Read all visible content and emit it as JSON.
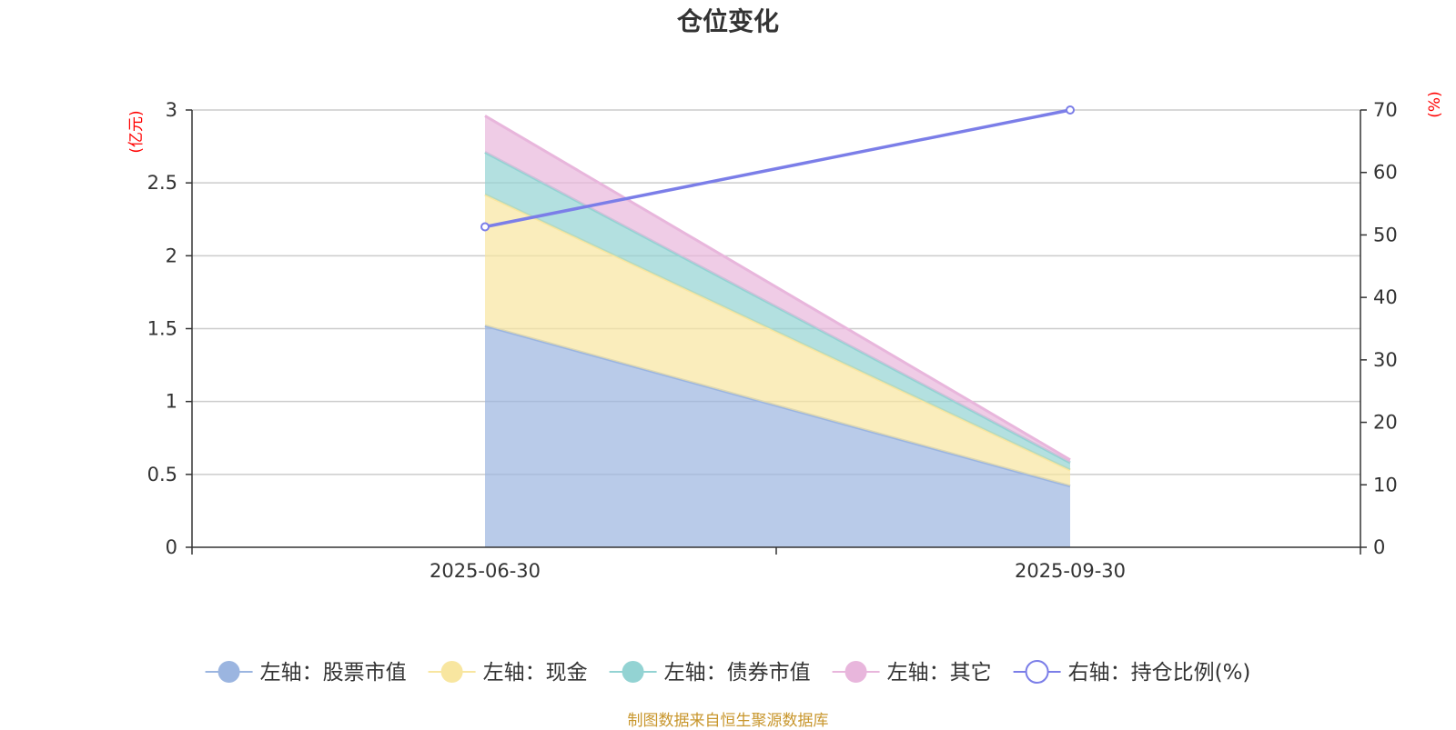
{
  "chart_data": {
    "type": "area",
    "title": "仓位变化",
    "categories": [
      "2025-06-30",
      "2025-09-30"
    ],
    "left_axis": {
      "unit": "(亿元)",
      "ylim": [
        0,
        3
      ],
      "ticks": [
        "0",
        "0.5",
        "1",
        "1.5",
        "2",
        "2.5",
        "3"
      ]
    },
    "right_axis": {
      "unit": "(%)",
      "ylim": [
        0,
        70
      ],
      "ticks": [
        "0",
        "10",
        "20",
        "30",
        "40",
        "50",
        "60",
        "70"
      ]
    },
    "series": [
      {
        "name": "左轴：股票市值",
        "axis": "left",
        "stacked": true,
        "values": [
          1.52,
          0.42
        ],
        "color": "#9bb5e0"
      },
      {
        "name": "左轴：现金",
        "axis": "left",
        "stacked": true,
        "values": [
          0.9,
          0.11
        ],
        "color": "#f8e6a0"
      },
      {
        "name": "左轴：债券市值",
        "axis": "left",
        "stacked": true,
        "values": [
          0.29,
          0.05
        ],
        "color": "#93d3d3"
      },
      {
        "name": "左轴：其它",
        "axis": "left",
        "stacked": true,
        "values": [
          0.25,
          0.02
        ],
        "color": "#e8b6dc"
      },
      {
        "name": "右轴：持仓比例(%)",
        "axis": "right",
        "type": "line",
        "values": [
          51.3,
          70.0
        ],
        "color": "#7b7ee8"
      }
    ],
    "grid": true,
    "legend_position": "bottom"
  },
  "source_note": "制图数据来自恒生聚源数据库"
}
